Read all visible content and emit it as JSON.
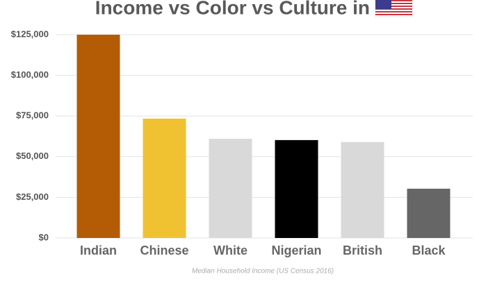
{
  "chart_data": {
    "type": "bar",
    "title": "Income vs Color vs Culture in",
    "x_label": "Median Household Income (US Census 2016)",
    "categories": [
      "Indian",
      "Chinese",
      "White",
      "Nigerian",
      "British",
      "Black"
    ],
    "values": [
      125000,
      73400,
      61000,
      60200,
      59000,
      30300
    ],
    "colors": [
      "#b35c05",
      "#f0c232",
      "#d9d9d9",
      "#000000",
      "#d9d9d9",
      "#666666"
    ],
    "ylim": [
      0,
      125000
    ],
    "yticks": [
      {
        "value": 0,
        "label": "$0"
      },
      {
        "value": 25000,
        "label": "$25,000"
      },
      {
        "value": 50000,
        "label": "$50,000"
      },
      {
        "value": 75000,
        "label": "$75,000"
      },
      {
        "value": 100000,
        "label": "$100,000"
      },
      {
        "value": 125000,
        "label": "$125,000"
      }
    ],
    "grid": true
  }
}
